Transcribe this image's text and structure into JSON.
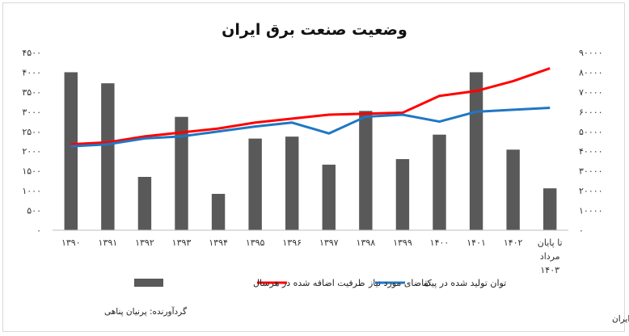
{
  "chart_data": {
    "type": "bar",
    "title": "وضعیت صنعت برق ایران",
    "categories": [
      "۱۳۹۰",
      "۱۳۹۱",
      "۱۳۹۲",
      "۱۳۹۳",
      "۱۳۹۴",
      "۱۳۹۵",
      "۱۳۹۶",
      "۱۳۹۷",
      "۱۳۹۸",
      "۱۳۹۹",
      "۱۴۰۰",
      "۱۴۰۱",
      "۱۴۰۲",
      [
        "تا پایان",
        "مرداد",
        "۱۴۰۳"
      ]
    ],
    "series": [
      {
        "name": "ظرفیت اضافه شده در هرسال",
        "type": "bar",
        "axis": "left",
        "color": "#595959",
        "values": [
          4000,
          3720,
          1350,
          2870,
          920,
          2320,
          2370,
          1660,
          3020,
          1800,
          2420,
          4000,
          2040,
          1060
        ]
      },
      {
        "name": "تقاضای مورد نیاز",
        "type": "line",
        "axis": "right",
        "color": "#ff0000",
        "values": [
          43500,
          44500,
          47500,
          49500,
          51500,
          54500,
          56500,
          58500,
          59000,
          59500,
          68000,
          70500,
          75500,
          82000
        ]
      },
      {
        "name": "توان تولید شده در پیک",
        "type": "line",
        "axis": "right",
        "color": "#1f77c4",
        "values": [
          42500,
          43500,
          46500,
          47500,
          50000,
          52500,
          54500,
          49000,
          57500,
          58500,
          55000,
          60000,
          61000,
          62000
        ]
      }
    ],
    "left_axis": {
      "ylim": [
        0,
        4500
      ],
      "ticks": [
        "۰",
        "۵۰۰",
        "۱۰۰۰",
        "۱۵۰۰",
        "۲۰۰۰",
        "۲۵۰۰",
        "۳۰۰۰",
        "۳۵۰۰",
        "۴۰۰۰",
        "۴۵۰۰"
      ]
    },
    "right_axis": {
      "ylim": [
        0,
        90000
      ],
      "ticks": [
        "۰",
        "۱۰۰۰۰",
        "۲۰۰۰۰",
        "۳۰۰۰۰",
        "۴۰۰۰۰",
        "۵۰۰۰۰",
        "۶۰۰۰۰",
        "۷۰۰۰۰",
        "۸۰۰۰۰",
        "۹۰۰۰۰"
      ]
    },
    "grid": false,
    "legend_position": "bottom"
  },
  "footer": {
    "compiler": "گردآورنده: پرنیان پناهی",
    "source": "شرکت مدیریت شبکه برق ایران"
  }
}
